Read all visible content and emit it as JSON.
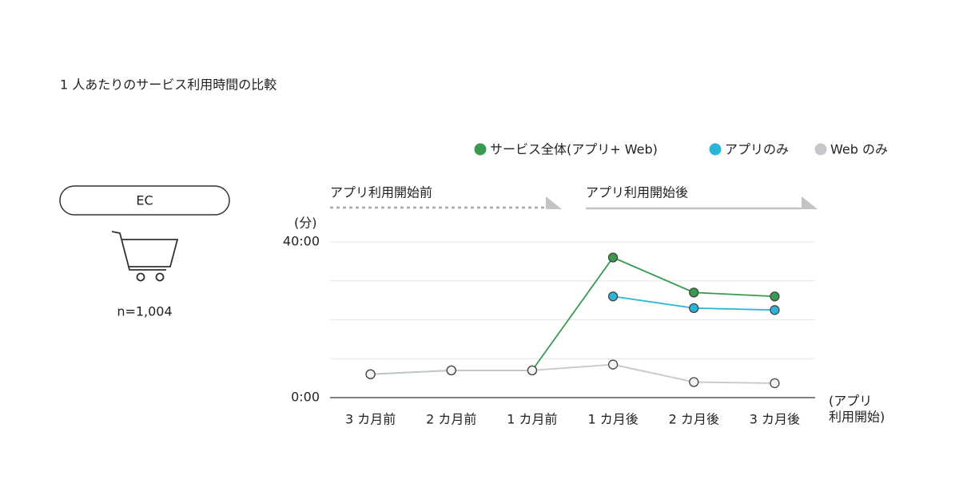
{
  "chart_data": {
    "type": "line",
    "title": "1 人あたりのサービス利用時間の比較",
    "segment": "EC",
    "sample": "n=1,004",
    "unit": "(分)",
    "phases": [
      "アプリ利用開始前",
      "アプリ利用開始後"
    ],
    "x_end_label": [
      "(アプリ",
      "利用開始)"
    ],
    "categories": [
      "3 カ月前",
      "2 カ月前",
      "1 カ月前",
      "1 カ月後",
      "2 カ月後",
      "3 カ月後"
    ],
    "series": [
      {
        "name": "サービス全体(アプリ+ Web)",
        "color": "#3a9a4f",
        "values": [
          6,
          7,
          7,
          36,
          27,
          26
        ]
      },
      {
        "name": "アプリのみ",
        "color": "#2bb6d8",
        "values": [
          null,
          null,
          null,
          26,
          23,
          22.5
        ]
      },
      {
        "name": "Web のみ",
        "color": "#c6c7cb",
        "values": [
          6,
          7,
          7,
          8.5,
          4,
          3.7
        ]
      }
    ],
    "ylim": [
      0,
      40
    ],
    "yticks": [
      {
        "value": 0,
        "label": "0:00"
      },
      {
        "value": 40,
        "label": "40:00"
      }
    ],
    "minor_yticks": [
      10,
      20,
      30
    ],
    "grid": true
  }
}
